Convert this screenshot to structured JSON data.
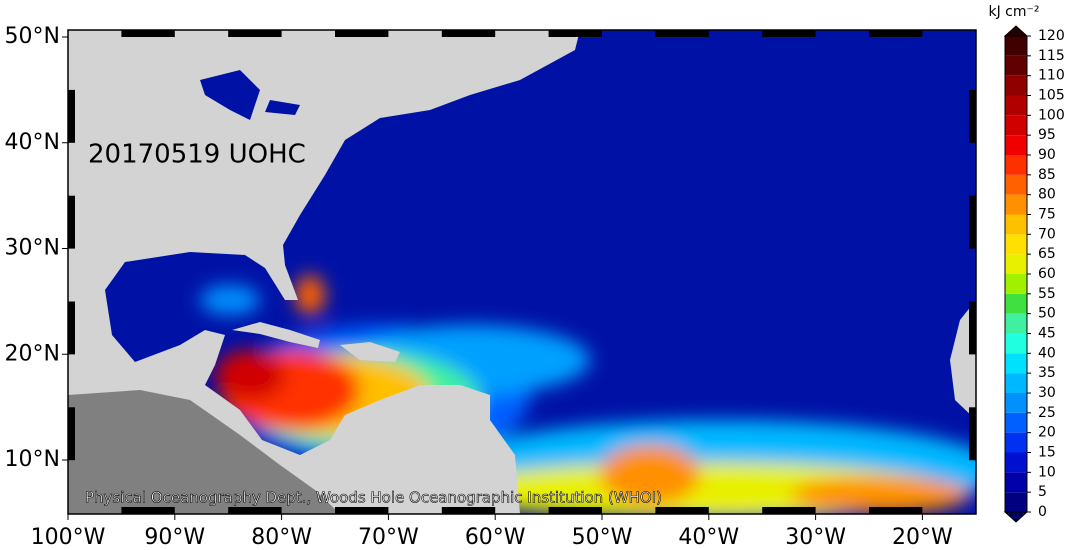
{
  "title": "20170519 UOHC",
  "credit": "Physical Oceanography Dept., Woods Hole Oceanographic Institution (WHOI)",
  "lon_ticks": [
    {
      "value": -100,
      "label": "100°W"
    },
    {
      "value": -90,
      "label": "90°W"
    },
    {
      "value": -80,
      "label": "80°W"
    },
    {
      "value": -70,
      "label": "70°W"
    },
    {
      "value": -60,
      "label": "60°W"
    },
    {
      "value": -50,
      "label": "50°W"
    },
    {
      "value": -40,
      "label": "40°W"
    },
    {
      "value": -30,
      "label": "30°W"
    },
    {
      "value": -20,
      "label": "20°W"
    }
  ],
  "lat_ticks": [
    {
      "value": 50,
      "label": "50°N"
    },
    {
      "value": 40,
      "label": "40°N"
    },
    {
      "value": 30,
      "label": "30°N"
    },
    {
      "value": 20,
      "label": "20°N"
    },
    {
      "value": 10,
      "label": "10°N"
    }
  ],
  "colorbar": {
    "unit": "kJ cm⁻²",
    "range": [
      0,
      120
    ],
    "ticks": [
      0,
      5,
      10,
      15,
      20,
      25,
      30,
      35,
      40,
      45,
      50,
      55,
      60,
      65,
      70,
      75,
      80,
      85,
      90,
      95,
      100,
      105,
      110,
      115,
      120
    ],
    "colors": [
      "#000080",
      "#0000a8",
      "#0010d0",
      "#0030f0",
      "#0060ff",
      "#0090ff",
      "#00b8ff",
      "#00e0ff",
      "#20ffe0",
      "#40f0a0",
      "#40e040",
      "#a0f000",
      "#e8f000",
      "#ffe000",
      "#ffc000",
      "#ff9000",
      "#ff6000",
      "#ff3000",
      "#f00000",
      "#d00000",
      "#b00000",
      "#900000",
      "#600000",
      "#400000"
    ],
    "under_color": "#000060",
    "over_color": "#200000"
  }
}
